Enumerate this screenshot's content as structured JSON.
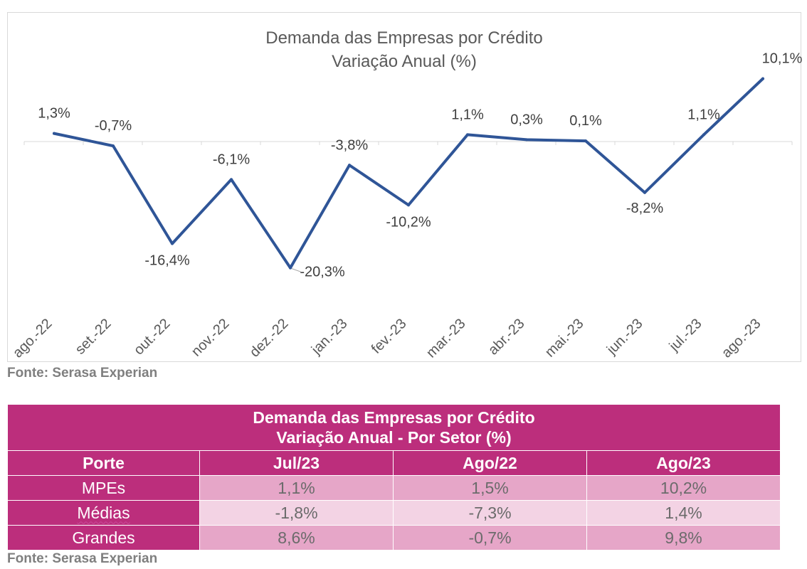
{
  "chart_data": {
    "type": "line",
    "title": "Demanda das Empresas por Crédito",
    "subtitle": "Variação Anual (%)",
    "categories": [
      "ago.-22",
      "set.-22",
      "out.-22",
      "nov.-22",
      "dez.-22",
      "jan.-23",
      "fev.-23",
      "mar.-23",
      "abr.-23",
      "mai.-23",
      "jun.-23",
      "jul.-23",
      "ago.-23"
    ],
    "values": [
      1.3,
      -0.7,
      -16.4,
      -6.1,
      -20.3,
      -3.8,
      -10.2,
      1.1,
      0.3,
      0.1,
      -8.2,
      1.1,
      10.1
    ],
    "data_labels": [
      "1,3%",
      "-0,7%",
      "-16,4%",
      "-6,1%",
      "-20,3%",
      "-3,8%",
      "-10,2%",
      "1,1%",
      "0,3%",
      "0,1%",
      "-8,2%",
      "1,1%",
      "10,1%"
    ],
    "ylim": [
      -22,
      11
    ],
    "grid": false,
    "line_color": "#2f5597"
  },
  "source_label_1": "Fonte: Serasa Experian",
  "source_label_2": "Fonte: Serasa Experian",
  "table": {
    "title_line1": "Demanda das Empresas por Crédito",
    "title_line2": "Variação Anual - Por Setor (%)",
    "headers": [
      "Porte",
      "Jul/23",
      "Ago/22",
      "Ago/23"
    ],
    "rows": [
      {
        "porte": "MPEs",
        "values": [
          "1,1%",
          "1,5%",
          "10,2%"
        ]
      },
      {
        "porte": "Médias",
        "values": [
          "-1,8%",
          "-7,3%",
          "1,4%"
        ]
      },
      {
        "porte": "Grandes",
        "values": [
          "8,6%",
          "-0,7%",
          "9,8%"
        ]
      }
    ],
    "colors": {
      "header": "#bc2e7c",
      "row_dark": "#e6a6c8",
      "row_light": "#f3d3e4"
    }
  }
}
